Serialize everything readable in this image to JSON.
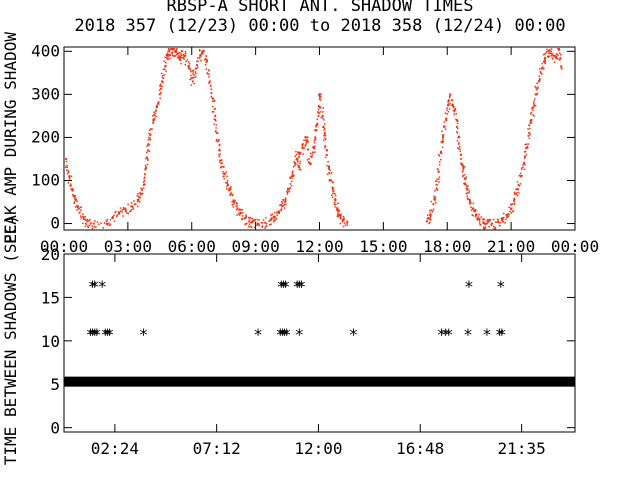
{
  "title": {
    "line1": "RBSP-A SHORT ANT. SHADOW TIMES",
    "line2": "2018 357 (12/23) 00:00 to 2018 358 (12/24) 00:00"
  },
  "colors": {
    "amp": "#ee3311",
    "axes": "#000000",
    "points": "#000000"
  },
  "chart_data": [
    {
      "type": "scatter",
      "ylabel": "PEAK AMP DURING SHADOW",
      "ylim": [
        -15,
        410
      ],
      "xlim_hours": [
        0,
        24
      ],
      "x_ticks": [
        "00:00",
        "03:00",
        "06:00",
        "09:00",
        "12:00",
        "15:00",
        "18:00",
        "21:00",
        "00:00"
      ],
      "y_ticks": [
        0,
        100,
        200,
        300,
        400
      ],
      "series": [
        {
          "color": "#ee3311",
          "points_hours_value": [
            [
              0.1,
              150
            ],
            [
              0.25,
              110
            ],
            [
              0.4,
              80
            ],
            [
              0.55,
              55
            ],
            [
              0.7,
              35
            ],
            [
              0.9,
              15
            ],
            [
              1.1,
              5
            ],
            [
              1.4,
              0
            ],
            [
              2.0,
              5
            ],
            [
              2.3,
              15
            ],
            [
              2.6,
              25
            ],
            [
              2.9,
              32
            ],
            [
              3.2,
              40
            ],
            [
              3.5,
              55
            ],
            [
              3.6,
              70
            ],
            [
              3.75,
              90
            ],
            [
              3.85,
              130
            ],
            [
              3.95,
              170
            ],
            [
              4.05,
              205
            ],
            [
              4.2,
              240
            ],
            [
              4.35,
              270
            ],
            [
              4.5,
              300
            ],
            [
              4.6,
              330
            ],
            [
              4.75,
              365
            ],
            [
              4.85,
              390
            ],
            [
              4.95,
              400
            ],
            [
              5.05,
              405
            ],
            [
              5.2,
              400
            ],
            [
              5.35,
              395
            ],
            [
              5.45,
              380
            ],
            [
              5.55,
              400
            ],
            [
              5.7,
              390
            ],
            [
              5.9,
              360
            ],
            [
              6.05,
              330
            ],
            [
              6.2,
              360
            ],
            [
              6.4,
              390
            ],
            [
              6.5,
              400
            ],
            [
              6.7,
              380
            ],
            [
              6.85,
              330
            ],
            [
              7.0,
              290
            ],
            [
              7.1,
              250
            ],
            [
              7.2,
              210
            ],
            [
              7.3,
              170
            ],
            [
              7.4,
              140
            ],
            [
              7.55,
              115
            ],
            [
              7.7,
              90
            ],
            [
              7.85,
              70
            ],
            [
              8.0,
              50
            ],
            [
              8.15,
              35
            ],
            [
              8.3,
              25
            ],
            [
              8.5,
              12
            ],
            [
              8.7,
              5
            ],
            [
              8.85,
              3
            ],
            [
              9.1,
              0
            ],
            [
              9.45,
              2
            ],
            [
              9.7,
              8
            ],
            [
              9.9,
              15
            ],
            [
              10.1,
              25
            ],
            [
              10.25,
              40
            ],
            [
              10.4,
              55
            ],
            [
              10.55,
              80
            ],
            [
              10.7,
              110
            ],
            [
              10.85,
              140
            ],
            [
              11.0,
              165
            ],
            [
              11.05,
              130
            ],
            [
              11.2,
              175
            ],
            [
              11.35,
              200
            ],
            [
              11.45,
              190
            ],
            [
              11.55,
              140
            ],
            [
              11.7,
              165
            ],
            [
              11.8,
              200
            ],
            [
              11.9,
              230
            ],
            [
              12.0,
              270
            ],
            [
              12.05,
              300
            ],
            [
              12.15,
              250
            ],
            [
              12.25,
              210
            ],
            [
              12.35,
              170
            ],
            [
              12.45,
              130
            ],
            [
              12.55,
              100
            ],
            [
              12.65,
              75
            ],
            [
              12.75,
              55
            ],
            [
              12.85,
              35
            ],
            [
              12.95,
              20
            ],
            [
              13.1,
              8
            ],
            [
              13.3,
              2
            ],
            [
              17.05,
              5
            ],
            [
              17.2,
              20
            ],
            [
              17.35,
              45
            ],
            [
              17.5,
              80
            ],
            [
              17.6,
              120
            ],
            [
              17.7,
              165
            ],
            [
              17.8,
              200
            ],
            [
              17.95,
              240
            ],
            [
              18.05,
              275
            ],
            [
              18.15,
              300
            ],
            [
              18.3,
              270
            ],
            [
              18.45,
              240
            ],
            [
              18.55,
              200
            ],
            [
              18.65,
              160
            ],
            [
              18.75,
              130
            ],
            [
              18.85,
              105
            ],
            [
              18.95,
              80
            ],
            [
              19.05,
              55
            ],
            [
              19.2,
              35
            ],
            [
              19.35,
              20
            ],
            [
              19.5,
              10
            ],
            [
              19.7,
              3
            ],
            [
              19.85,
              0
            ],
            [
              20.1,
              0
            ],
            [
              20.4,
              3
            ],
            [
              20.6,
              10
            ],
            [
              20.8,
              20
            ],
            [
              21.0,
              35
            ],
            [
              21.15,
              55
            ],
            [
              21.3,
              80
            ],
            [
              21.45,
              110
            ],
            [
              21.6,
              140
            ],
            [
              21.7,
              175
            ],
            [
              21.85,
              210
            ],
            [
              21.95,
              240
            ],
            [
              22.05,
              270
            ],
            [
              22.15,
              300
            ],
            [
              22.3,
              330
            ],
            [
              22.45,
              360
            ],
            [
              22.6,
              385
            ],
            [
              22.75,
              400
            ],
            [
              22.9,
              395
            ],
            [
              23.1,
              385
            ],
            [
              23.25,
              405
            ],
            [
              23.35,
              365
            ]
          ]
        }
      ]
    },
    {
      "type": "scatter",
      "ylabel": "TIME BETWEEN SHADOWS (SEC)",
      "ylim": [
        -0.5,
        20
      ],
      "xlim_hours": [
        0,
        24.1
      ],
      "x_ticks": [
        "02:24",
        "07:12",
        "12:00",
        "16:48",
        "21:35"
      ],
      "x_tick_hours": [
        2.4,
        7.2,
        12.0,
        16.8,
        21.5833
      ],
      "y_ticks": [
        0,
        5,
        10,
        15,
        20
      ],
      "marker": "*",
      "series": [
        {
          "color": "#000000",
          "baseline_value": 5.3,
          "baseline_range_hours": [
            0,
            24.1
          ],
          "points_hours_value": [
            [
              1.35,
              16.3
            ],
            [
              1.45,
              16.3
            ],
            [
              1.8,
              16.3
            ],
            [
              1.25,
              10.8
            ],
            [
              1.35,
              10.8
            ],
            [
              1.45,
              10.8
            ],
            [
              1.55,
              10.8
            ],
            [
              1.95,
              10.8
            ],
            [
              2.05,
              10.8
            ],
            [
              2.15,
              10.8
            ],
            [
              3.75,
              10.8
            ],
            [
              9.15,
              10.8
            ],
            [
              10.25,
              16.3
            ],
            [
              10.35,
              16.3
            ],
            [
              10.45,
              16.3
            ],
            [
              11.0,
              16.3
            ],
            [
              11.1,
              16.3
            ],
            [
              11.2,
              16.3
            ],
            [
              10.2,
              10.8
            ],
            [
              10.3,
              10.8
            ],
            [
              10.4,
              10.8
            ],
            [
              10.5,
              10.8
            ],
            [
              11.1,
              10.8
            ],
            [
              13.65,
              10.8
            ],
            [
              17.8,
              10.8
            ],
            [
              18.0,
              10.8
            ],
            [
              18.15,
              10.8
            ],
            [
              19.1,
              16.3
            ],
            [
              20.6,
              16.3
            ],
            [
              19.05,
              10.8
            ],
            [
              19.95,
              10.8
            ],
            [
              20.55,
              10.8
            ],
            [
              20.65,
              10.8
            ]
          ]
        }
      ]
    }
  ]
}
